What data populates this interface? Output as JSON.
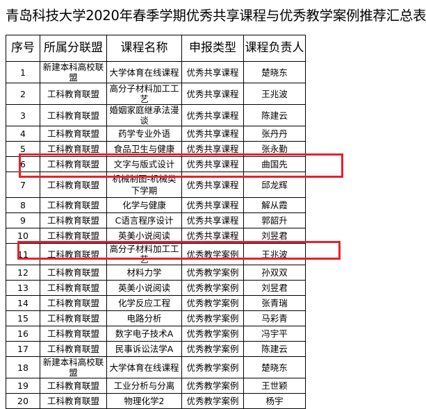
{
  "title": "青岛科技大学2020年春季学期优秀共享课程与优秀教学案例推荐汇总表",
  "headers": [
    "序号",
    "所属分联盟",
    "课程名称",
    "申报类型",
    "课程负责人"
  ],
  "rows": [
    [
      "1",
      "新建本科高校联盟",
      "大学体育在线课程",
      "优秀共享课程",
      "楚晓东"
    ],
    [
      "2",
      "工科教育联盟",
      "高分子材料加工工艺",
      "优秀共享课程",
      "王兆波"
    ],
    [
      "3",
      "工科教育联盟",
      "婚姻家庭继承法漫谈",
      "优秀共享课程",
      "陈建云"
    ],
    [
      "4",
      "工科教育联盟",
      "药学专业外语",
      "优秀共享课程",
      "张丹丹"
    ],
    [
      "5",
      "工科教育联盟",
      "食品卫生与健康",
      "优秀共享课程",
      "张永勤"
    ],
    [
      "6",
      "工科教育联盟",
      "文字与版式设计",
      "优秀共享课程",
      "曲国先"
    ],
    [
      "7",
      "工科教育联盟",
      "机械制图-机械类下学期",
      "优秀共享课程",
      "邱龙辉"
    ],
    [
      "8",
      "工科教育联盟",
      "化学与健康",
      "优秀共享课程",
      "解从霞"
    ],
    [
      "9",
      "工科教育联盟",
      "C语言程序设计",
      "优秀共享课程",
      "郭韶升"
    ],
    [
      "10",
      "工科教育联盟",
      "英美小说阅读",
      "优秀共享课程",
      "刘昱君"
    ],
    [
      "11",
      "工科教育联盟",
      "高分子材料加工工艺",
      "优秀教学案例",
      "王兆波"
    ],
    [
      "12",
      "工科教育联盟",
      "材料力学",
      "优秀教学案例",
      "孙双双"
    ],
    [
      "13",
      "工科教育联盟",
      "英美小说阅读",
      "优秀教学案例",
      "刘昱君"
    ],
    [
      "14",
      "工科教育联盟",
      "化学反应工程",
      "优秀教学案例",
      "张青瑞"
    ],
    [
      "15",
      "工科教育联盟",
      "电路分析",
      "优秀教学案例",
      "马彩青"
    ],
    [
      "16",
      "工科教育联盟",
      "数字电子技术A",
      "优秀教学案例",
      "冯宇平"
    ],
    [
      "17",
      "工科教育联盟",
      "民事诉讼法学A",
      "优秀教学案例",
      "陈建云"
    ],
    [
      "18",
      "新建本科高校联盟",
      "大学体育在线课程",
      "优秀教学案例",
      "楚晓东"
    ],
    [
      "19",
      "工科教育联盟",
      "工业分析与分离",
      "优秀教学案例",
      "王世颖"
    ],
    [
      "20",
      "工科教育联盟",
      "物理化学2",
      "优秀教学案例",
      "杨宇"
    ]
  ],
  "highlighted_rows": [
    "7",
    "12"
  ],
  "highlight_color": "#e8202a"
}
